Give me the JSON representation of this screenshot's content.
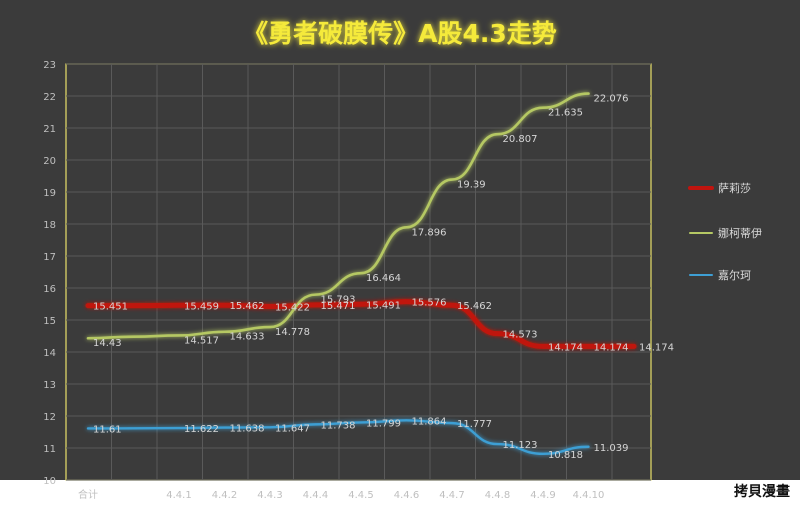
{
  "watermark": "拷貝漫畫",
  "chart_data": {
    "type": "line",
    "title": "《勇者破膜传》A股4.3走势",
    "categories": [
      "合计",
      "",
      "4.4.1",
      "4.4.2",
      "4.4.3",
      "4.4.4",
      "4.4.5",
      "4.4.6",
      "4.4.7",
      "4.4.8",
      "4.4.9",
      "4.4.10",
      ""
    ],
    "ylim": [
      10,
      23
    ],
    "yticks": [
      10,
      11,
      12,
      13,
      14,
      15,
      16,
      17,
      18,
      19,
      20,
      21,
      22,
      23
    ],
    "grid": true,
    "legend_position": "right",
    "series": [
      {
        "name": "萨莉莎",
        "color": "#c0140e",
        "values": [
          15.451,
          15.451,
          15.459,
          15.462,
          15.422,
          15.471,
          15.491,
          15.576,
          15.462,
          14.573,
          14.174,
          14.174,
          14.174
        ],
        "labels": [
          "15.451",
          "",
          "15.459",
          "15.462",
          "15.422",
          "15.471",
          "15.491",
          "15.576",
          "15.462",
          "14.573",
          "14.174",
          "14.174",
          "14.174"
        ]
      },
      {
        "name": "娜柯蒂伊",
        "color": "#b5c864",
        "values": [
          14.43,
          14.48,
          14.517,
          14.633,
          14.778,
          15.793,
          16.464,
          17.896,
          19.39,
          20.807,
          21.635,
          22.076,
          null
        ],
        "labels": [
          "14.43",
          "",
          "14.517",
          "14.633",
          "14.778",
          "15.793",
          "16.464",
          "17.896",
          "19.39",
          "20.807",
          "21.635",
          "22.076",
          ""
        ]
      },
      {
        "name": "嘉尔珂",
        "color": "#3e9fd4",
        "values": [
          11.61,
          11.615,
          11.622,
          11.638,
          11.647,
          11.738,
          11.799,
          11.864,
          11.777,
          11.123,
          10.818,
          11.039,
          null
        ],
        "labels": [
          "11.61",
          "",
          "11.622",
          "11.638",
          "11.647",
          "11.738",
          "11.799",
          "11.864",
          "11.777",
          "11.123",
          "10.818",
          "11.039",
          ""
        ]
      }
    ]
  }
}
